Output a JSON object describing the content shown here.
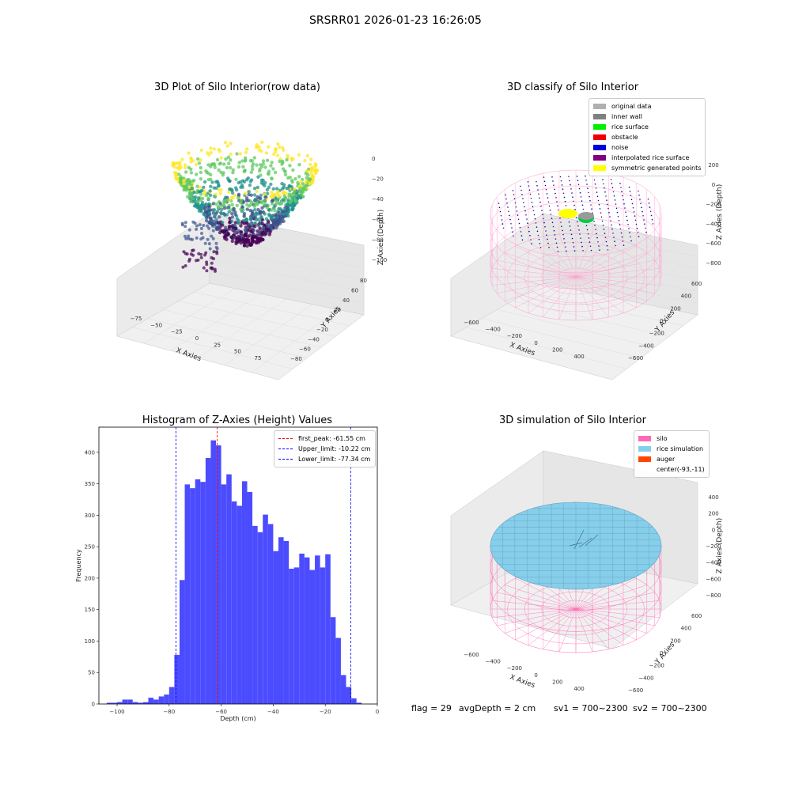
{
  "suptitle": "SRSRR01 2026-01-23 16:26:05",
  "chart_data": [
    {
      "type": "scatter",
      "title": "3D Plot of Silo Interior(row data)",
      "xlabel": "X Axies",
      "ylabel": "Y Axies",
      "zlabel": "Z Axies (Depth)",
      "x_ticks": [
        "−75",
        "−50",
        "−25",
        "0",
        "25",
        "50",
        "75"
      ],
      "y_ticks": [
        "−80",
        "−60",
        "−40",
        "−20",
        "0",
        "20",
        "40",
        "60",
        "80"
      ],
      "z_ticks": [
        "0",
        "−20",
        "−40",
        "−60",
        "−80",
        "−100"
      ],
      "zlim": [
        -105,
        0
      ],
      "colormap": [
        "#440154",
        "#3b528b",
        "#21918c",
        "#5ec962",
        "#fde725"
      ]
    },
    {
      "type": "scatter",
      "title": "3D classify of Silo Interior",
      "xlabel": "X Axies",
      "ylabel": "Y Axies",
      "zlabel": "Z Axies (Depth)",
      "x_ticks": [
        "−600",
        "−400",
        "−200",
        "0",
        "200",
        "400"
      ],
      "y_ticks": [
        "−600",
        "−400",
        "−200",
        "0",
        "200",
        "400",
        "600"
      ],
      "z_ticks": [
        "200",
        "0",
        "−200",
        "−400",
        "−600",
        "−800"
      ],
      "legend": [
        {
          "label": "original data",
          "color": "#b0b0b0"
        },
        {
          "label": "inner wall",
          "color": "#808080"
        },
        {
          "label": "rice surface",
          "color": "#00ee00"
        },
        {
          "label": "obstacle",
          "color": "#ee0000"
        },
        {
          "label": "noise",
          "color": "#0000dd"
        },
        {
          "label": "interpolated rice surface",
          "color": "#800080"
        },
        {
          "label": "symmetric generated points",
          "color": "#ffff00"
        }
      ],
      "wall_color": "#ff9ccd"
    },
    {
      "type": "bar",
      "title": "Histogram of Z-Axies (Height) Values",
      "xlabel": "Depth (cm)",
      "ylabel": "Frequency",
      "xlim": [
        -107,
        0
      ],
      "ylim": [
        0,
        440
      ],
      "x_ticks": [
        -100,
        -80,
        -60,
        -40,
        -20,
        0
      ],
      "x_tick_labels": [
        "−100",
        "−80",
        "−60",
        "−40",
        "−20",
        "0"
      ],
      "y_ticks": [
        0,
        50,
        100,
        150,
        200,
        250,
        300,
        350,
        400
      ],
      "bar_color": "#4c4cff",
      "bin_start": -104,
      "bin_width": 2,
      "values": [
        2,
        2,
        3,
        7,
        7,
        3,
        2,
        3,
        10,
        7,
        12,
        15,
        27,
        78,
        197,
        349,
        343,
        357,
        353,
        391,
        419,
        411,
        349,
        365,
        322,
        315,
        354,
        337,
        283,
        273,
        301,
        286,
        243,
        265,
        259,
        215,
        217,
        239,
        233,
        213,
        236,
        217,
        238,
        138,
        105,
        46,
        27,
        9,
        2
      ],
      "lines": [
        {
          "label": "first_peak: -61.55 cm",
          "x": -61.55,
          "color": "#ff0000"
        },
        {
          "label": "Upper_limit: -10.22 cm",
          "x": -10.22,
          "color": "#0000ff"
        },
        {
          "label": "Lower_limit: -77.34 cm",
          "x": -77.34,
          "color": "#0000ff"
        }
      ]
    },
    {
      "type": "scatter",
      "title": "3D simulation of Silo Interior",
      "xlabel": "X Axies",
      "ylabel": "Y Axies",
      "zlabel": "Z Axies (Depth)",
      "x_ticks": [
        "−600",
        "−400",
        "−200",
        "0",
        "200",
        "400"
      ],
      "y_ticks": [
        "−600",
        "−400",
        "−200",
        "0",
        "200",
        "400",
        "600"
      ],
      "z_ticks": [
        "400",
        "200",
        "0",
        "−200",
        "−400",
        "−600",
        "−800"
      ],
      "legend": [
        {
          "label": "silo",
          "color": "#ff69b4"
        },
        {
          "label": "rice simulation",
          "color": "#87ceeb"
        },
        {
          "label": "auger",
          "color": "#ff4500"
        },
        {
          "label": "center(-93,-11)",
          "color": ""
        }
      ]
    }
  ],
  "footer": {
    "flag": "flag = 29",
    "avg_depth": "avgDepth = 2 cm",
    "sv1": "sv1 = 700~2300",
    "sv2": "sv2 = 700~2300"
  }
}
